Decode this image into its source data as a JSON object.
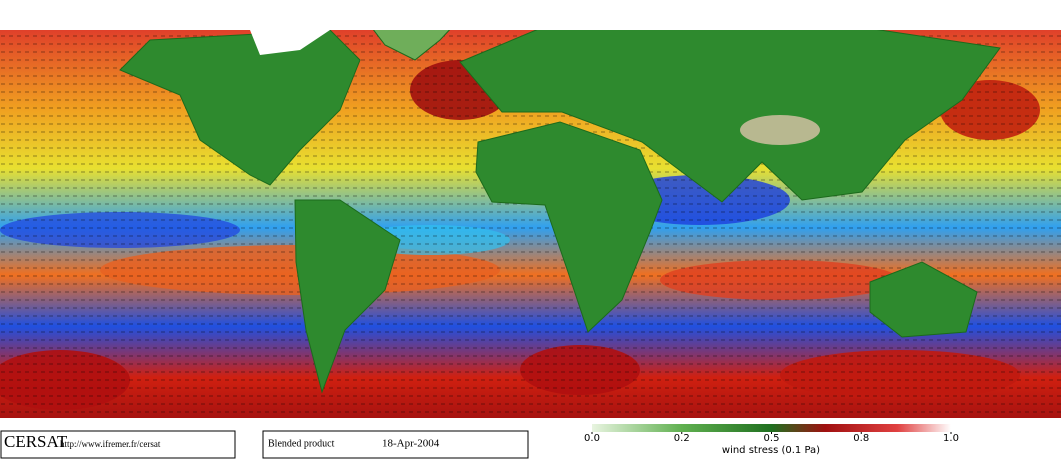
{
  "logo": "CERSAT",
  "url": "http://www.ifremer.fr/cersat",
  "product": "Blended product",
  "date": "18-Apr-2004",
  "colorbar": {
    "label": "wind stress (0.1 Pa)",
    "ticks": [
      {
        "value": 0,
        "label": "0.0"
      },
      0.2,
      0.5,
      0.8,
      {
        "value": 1,
        "label": "1.0"
      }
    ]
  }
}
